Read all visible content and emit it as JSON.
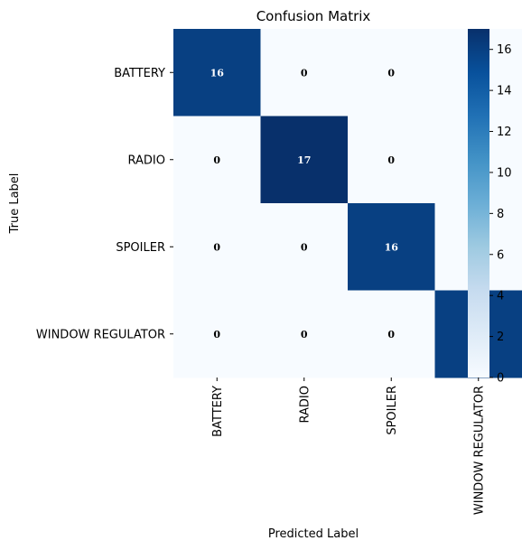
{
  "chart_data": {
    "type": "heatmap",
    "title": "Confusion Matrix",
    "xlabel": "Predicted Label",
    "ylabel": "True Label",
    "x_categories": [
      "BATTERY",
      "RADIO",
      "SPOILER",
      "WINDOW REGULATOR"
    ],
    "y_categories": [
      "BATTERY",
      "RADIO",
      "SPOILER",
      "WINDOW REGULATOR"
    ],
    "values": [
      [
        16,
        0,
        0,
        0
      ],
      [
        0,
        17,
        0,
        0
      ],
      [
        0,
        0,
        16,
        0
      ],
      [
        0,
        0,
        0,
        16
      ]
    ],
    "colorbar": {
      "range": [
        0,
        17
      ],
      "ticks": [
        0,
        2,
        4,
        6,
        8,
        10,
        12,
        14,
        16
      ],
      "colormap": "Blues",
      "color_low": "#f7fbff",
      "color_high": "#08306b"
    },
    "annotation_colors": {
      "light": "#ffffff",
      "dark": "#000000"
    }
  }
}
